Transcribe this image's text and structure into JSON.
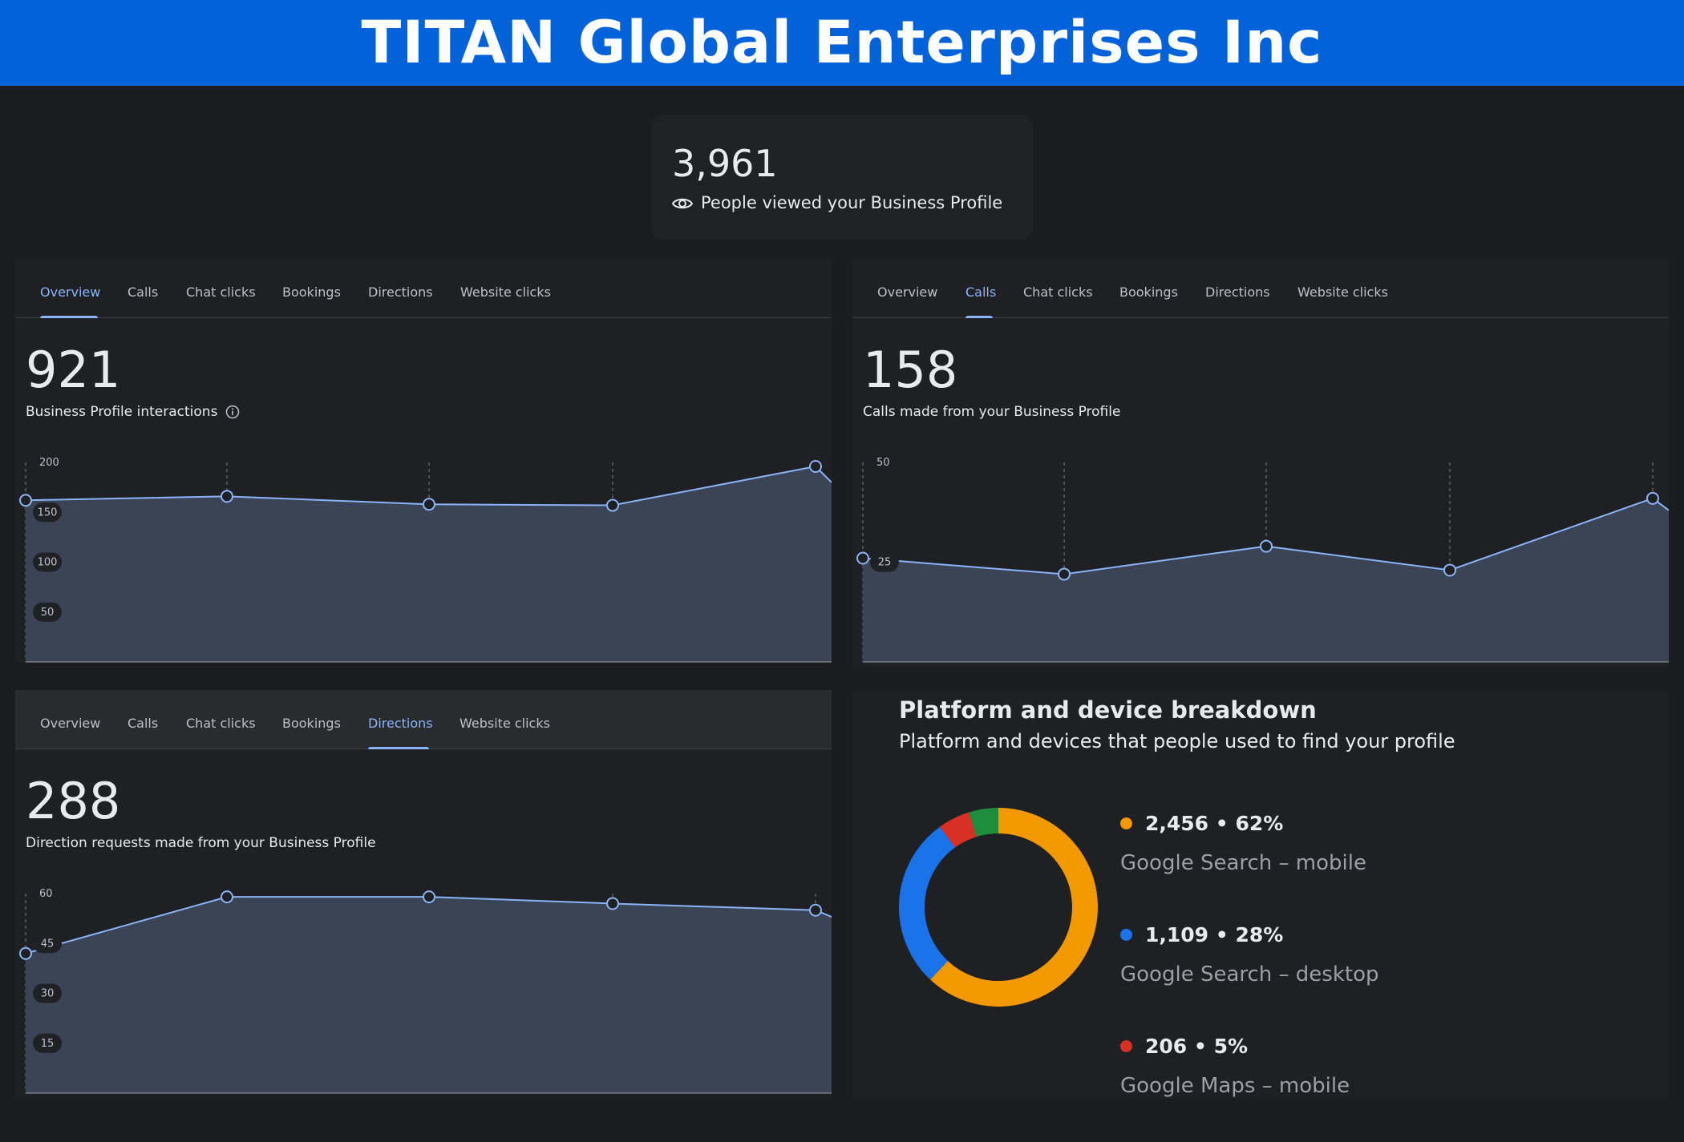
{
  "header": {
    "title": "TITAN Global Enterprises Inc"
  },
  "views": {
    "number": "3,961",
    "label": "People viewed your Business Profile",
    "icon": "eye-icon"
  },
  "tab_labels": [
    "Overview",
    "Calls",
    "Chat clicks",
    "Bookings",
    "Directions",
    "Website clicks"
  ],
  "panels": [
    {
      "active_tab": "Overview",
      "number": "921",
      "label": "Business Profile interactions",
      "has_info_icon": true,
      "chart_data": {
        "type": "area",
        "series": [
          {
            "values": [
              162,
              166,
              158,
              157,
              196,
              180
            ]
          }
        ],
        "ylim": [
          0,
          200
        ],
        "yticks": [
          200,
          150,
          100,
          50
        ],
        "line_color": "#8ab4f8",
        "fill_color": "#3b4455",
        "grid": "vertical dashed"
      }
    },
    {
      "active_tab": "Calls",
      "number": "158",
      "label": "Calls made from your Business Profile",
      "has_info_icon": false,
      "chart_data": {
        "type": "area",
        "series": [
          {
            "values": [
              26,
              22,
              29,
              23,
              41,
              38
            ]
          }
        ],
        "ylim": [
          0,
          50
        ],
        "yticks": [
          50,
          25
        ],
        "line_color": "#8ab4f8",
        "fill_color": "#3b4455",
        "grid": "vertical dashed"
      }
    },
    {
      "active_tab": "Directions",
      "number": "288",
      "label": "Direction requests made from your Business Profile",
      "has_info_icon": false,
      "chart_data": {
        "type": "area",
        "series": [
          {
            "values": [
              42,
              59,
              59,
              57,
              55,
              53
            ]
          }
        ],
        "ylim": [
          0,
          60
        ],
        "yticks": [
          60,
          45,
          30,
          15
        ],
        "line_color": "#8ab4f8",
        "fill_color": "#3b4455",
        "grid": "vertical dashed"
      }
    }
  ],
  "breakdown": {
    "title": "Platform and device breakdown",
    "subtitle": "Platform and devices that people used to find your profile",
    "chart_data": {
      "type": "pie",
      "style": "donut",
      "slices": [
        {
          "value": 2456,
          "percent": 62,
          "value_text": "2,456 • 62%",
          "name": "Google Search – mobile",
          "color": "#f29900"
        },
        {
          "value": 1109,
          "percent": 28,
          "value_text": "1,109 • 28%",
          "name": "Google Search – desktop",
          "color": "#1a73e8"
        },
        {
          "value": 206,
          "percent": 5,
          "value_text": "206 • 5%",
          "name": "Google Maps – mobile",
          "color": "#d93025"
        },
        {
          "value": 190,
          "percent": 5,
          "color": "#1e8e3e"
        }
      ]
    }
  }
}
